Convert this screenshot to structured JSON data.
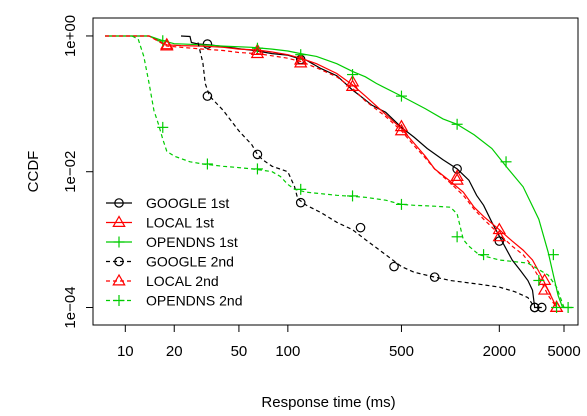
{
  "chart_data": {
    "type": "line",
    "title": "",
    "xlabel": "Response time (ms)",
    "ylabel": "CCDF",
    "xscale": "log",
    "yscale": "log",
    "xlim": [
      7.5,
      5600
    ],
    "ylim": [
      7e-05,
      1.45
    ],
    "grid": false,
    "legend_position": "bottom-left",
    "x_ticks": [
      10,
      20,
      50,
      100,
      500,
      2000,
      5000
    ],
    "x_tick_labels": [
      "10",
      "20",
      "50",
      "100",
      "500",
      "2000",
      "5000"
    ],
    "y_ticks": [
      1,
      0.01,
      0.0001
    ],
    "y_tick_labels": [
      "1e+00",
      "1e−02",
      "1e−04"
    ],
    "series": [
      {
        "name": "GOOGLE 1st",
        "color": "#000000",
        "dash": "solid",
        "marker": "circle",
        "x": [
          22,
          25,
          25.5,
          28,
          33,
          40,
          50,
          65,
          80,
          100,
          115,
          130,
          160,
          200,
          250,
          280,
          330,
          400,
          500,
          600,
          720,
          900,
          1100,
          1300,
          1450,
          1600,
          1800,
          2100,
          2400,
          2700,
          3000,
          3200,
          3300,
          3500,
          3650
        ],
        "y": [
          1,
          0.98,
          0.8,
          0.76,
          0.74,
          0.7,
          0.65,
          0.6,
          0.55,
          0.52,
          0.47,
          0.44,
          0.33,
          0.26,
          0.16,
          0.13,
          0.095,
          0.075,
          0.045,
          0.032,
          0.022,
          0.015,
          0.011,
          0.0075,
          0.0045,
          0.0032,
          0.0018,
          0.0009,
          0.0005,
          0.00035,
          0.00025,
          0.00018,
          0.0001,
          0.0001,
          0.0001
        ],
        "marker_x": [
          32,
          120,
          1100,
          2000,
          3300,
          3650
        ],
        "marker_y": [
          0.76,
          0.45,
          0.011,
          0.00095,
          0.0001,
          0.0001
        ]
      },
      {
        "name": "LOCAL 1st",
        "color": "#ff0000",
        "dash": "solid",
        "marker": "triangle",
        "x": [
          7.5,
          14,
          16,
          18,
          22,
          30,
          40,
          50,
          65,
          80,
          100,
          120,
          150,
          200,
          250,
          300,
          400,
          500,
          600,
          700,
          800,
          1000,
          1200,
          1400,
          1600,
          2000,
          2400,
          2800,
          3200,
          3600,
          4000,
          4500
        ],
        "y": [
          1,
          1,
          0.85,
          0.74,
          0.72,
          0.71,
          0.68,
          0.64,
          0.62,
          0.58,
          0.53,
          0.47,
          0.39,
          0.28,
          0.19,
          0.13,
          0.07,
          0.043,
          0.026,
          0.017,
          0.011,
          0.0072,
          0.005,
          0.003,
          0.0022,
          0.0014,
          0.00095,
          0.0007,
          0.0005,
          0.0003,
          0.00018,
          0.0001
        ],
        "marker_x": [
          18,
          65,
          120,
          250,
          500,
          1100,
          2000,
          3800,
          4500
        ],
        "marker_y": [
          0.74,
          0.61,
          0.44,
          0.21,
          0.046,
          0.0085,
          0.0014,
          0.00025,
          0.0001
        ]
      },
      {
        "name": "OPENDNS 1st",
        "color": "#00cc00",
        "dash": "solid",
        "marker": "plus",
        "x": [
          7.5,
          14,
          17,
          20,
          30,
          40,
          60,
          80,
          100,
          120,
          150,
          200,
          250,
          300,
          350,
          500,
          700,
          900,
          1100,
          1400,
          1800,
          2200,
          2800,
          3500,
          4000,
          4300,
          4600,
          4900,
          5200,
          5600
        ],
        "y": [
          1,
          1,
          0.85,
          0.77,
          0.74,
          0.71,
          0.68,
          0.64,
          0.6,
          0.55,
          0.5,
          0.39,
          0.3,
          0.25,
          0.2,
          0.13,
          0.085,
          0.06,
          0.05,
          0.035,
          0.022,
          0.012,
          0.006,
          0.002,
          0.00065,
          0.0003,
          0.00015,
          0.0001,
          0.0001,
          0.0001
        ],
        "marker_x": [
          17,
          65,
          120,
          250,
          500,
          1100,
          2200,
          4300,
          5300
        ],
        "marker_y": [
          0.85,
          0.66,
          0.53,
          0.27,
          0.13,
          0.05,
          0.014,
          0.0006,
          0.0001
        ]
      },
      {
        "name": "GOOGLE 2nd",
        "color": "#000000",
        "dash": "dashed",
        "marker": "circle",
        "x": [
          28,
          30,
          31,
          33,
          40,
          50,
          60,
          65,
          70,
          80,
          100,
          110,
          115,
          130,
          160,
          200,
          250,
          300,
          400,
          500,
          600,
          800,
          1000,
          1500,
          2000,
          2500,
          3000,
          3300
        ],
        "y": [
          0.8,
          0.4,
          0.2,
          0.13,
          0.08,
          0.04,
          0.025,
          0.018,
          0.015,
          0.012,
          0.01,
          0.006,
          0.004,
          0.0032,
          0.0025,
          0.0018,
          0.0014,
          0.001,
          0.0006,
          0.0004,
          0.00033,
          0.00028,
          0.00025,
          0.00022,
          0.0002,
          0.00017,
          0.00014,
          0.0001
        ],
        "marker_x": [
          32,
          65,
          120,
          280,
          450,
          800,
          3300
        ],
        "marker_y": [
          0.13,
          0.018,
          0.0035,
          0.0015,
          0.0004,
          0.00028,
          0.0001
        ]
      },
      {
        "name": "LOCAL 2nd",
        "color": "#ff0000",
        "dash": "dashed",
        "marker": "triangle",
        "x": [
          7.5,
          14,
          16,
          18,
          22,
          30,
          40,
          50,
          65,
          80,
          100,
          120,
          150,
          200,
          250,
          300,
          400,
          500,
          600,
          700,
          800,
          1000,
          1200,
          1400,
          1600,
          2000,
          2400,
          2800,
          3200,
          3600,
          4000,
          4500
        ],
        "y": [
          1,
          1,
          0.83,
          0.71,
          0.68,
          0.64,
          0.61,
          0.57,
          0.55,
          0.51,
          0.47,
          0.42,
          0.34,
          0.25,
          0.17,
          0.11,
          0.065,
          0.04,
          0.024,
          0.016,
          0.011,
          0.0068,
          0.0045,
          0.0028,
          0.002,
          0.0012,
          0.0008,
          0.0006,
          0.0004,
          0.00025,
          0.00015,
          0.0001
        ],
        "marker_x": [
          18,
          65,
          120,
          250,
          500,
          1100,
          2000,
          3800,
          4500
        ],
        "marker_y": [
          0.71,
          0.55,
          0.4,
          0.18,
          0.04,
          0.0075,
          0.0011,
          0.00018,
          0.0001
        ]
      },
      {
        "name": "OPENDNS 2nd",
        "color": "#00cc00",
        "dash": "dashed",
        "marker": "plus",
        "x": [
          11,
          12,
          13,
          14,
          15,
          16,
          17,
          18,
          20,
          25,
          30,
          40,
          50,
          60,
          70,
          80,
          90,
          100,
          110,
          130,
          200,
          300,
          400,
          500,
          600,
          800,
          1000,
          1100,
          1200,
          1300,
          1500,
          2000,
          3000,
          4000,
          4500,
          5000
        ],
        "y": [
          1,
          0.9,
          0.5,
          0.2,
          0.08,
          0.05,
          0.03,
          0.02,
          0.017,
          0.014,
          0.013,
          0.012,
          0.0115,
          0.011,
          0.0105,
          0.01,
          0.0085,
          0.0065,
          0.0055,
          0.005,
          0.0045,
          0.0042,
          0.0038,
          0.0033,
          0.0032,
          0.0031,
          0.003,
          0.0024,
          0.001,
          0.0008,
          0.0006,
          0.0005,
          0.00045,
          0.0003,
          0.0002,
          0.0001
        ],
        "marker_x": [
          17,
          32,
          65,
          120,
          250,
          500,
          1100,
          1600,
          3500,
          4500
        ],
        "marker_y": [
          0.045,
          0.013,
          0.011,
          0.0055,
          0.0044,
          0.0033,
          0.0011,
          0.0006,
          0.00025,
          0.0001
        ]
      }
    ]
  }
}
